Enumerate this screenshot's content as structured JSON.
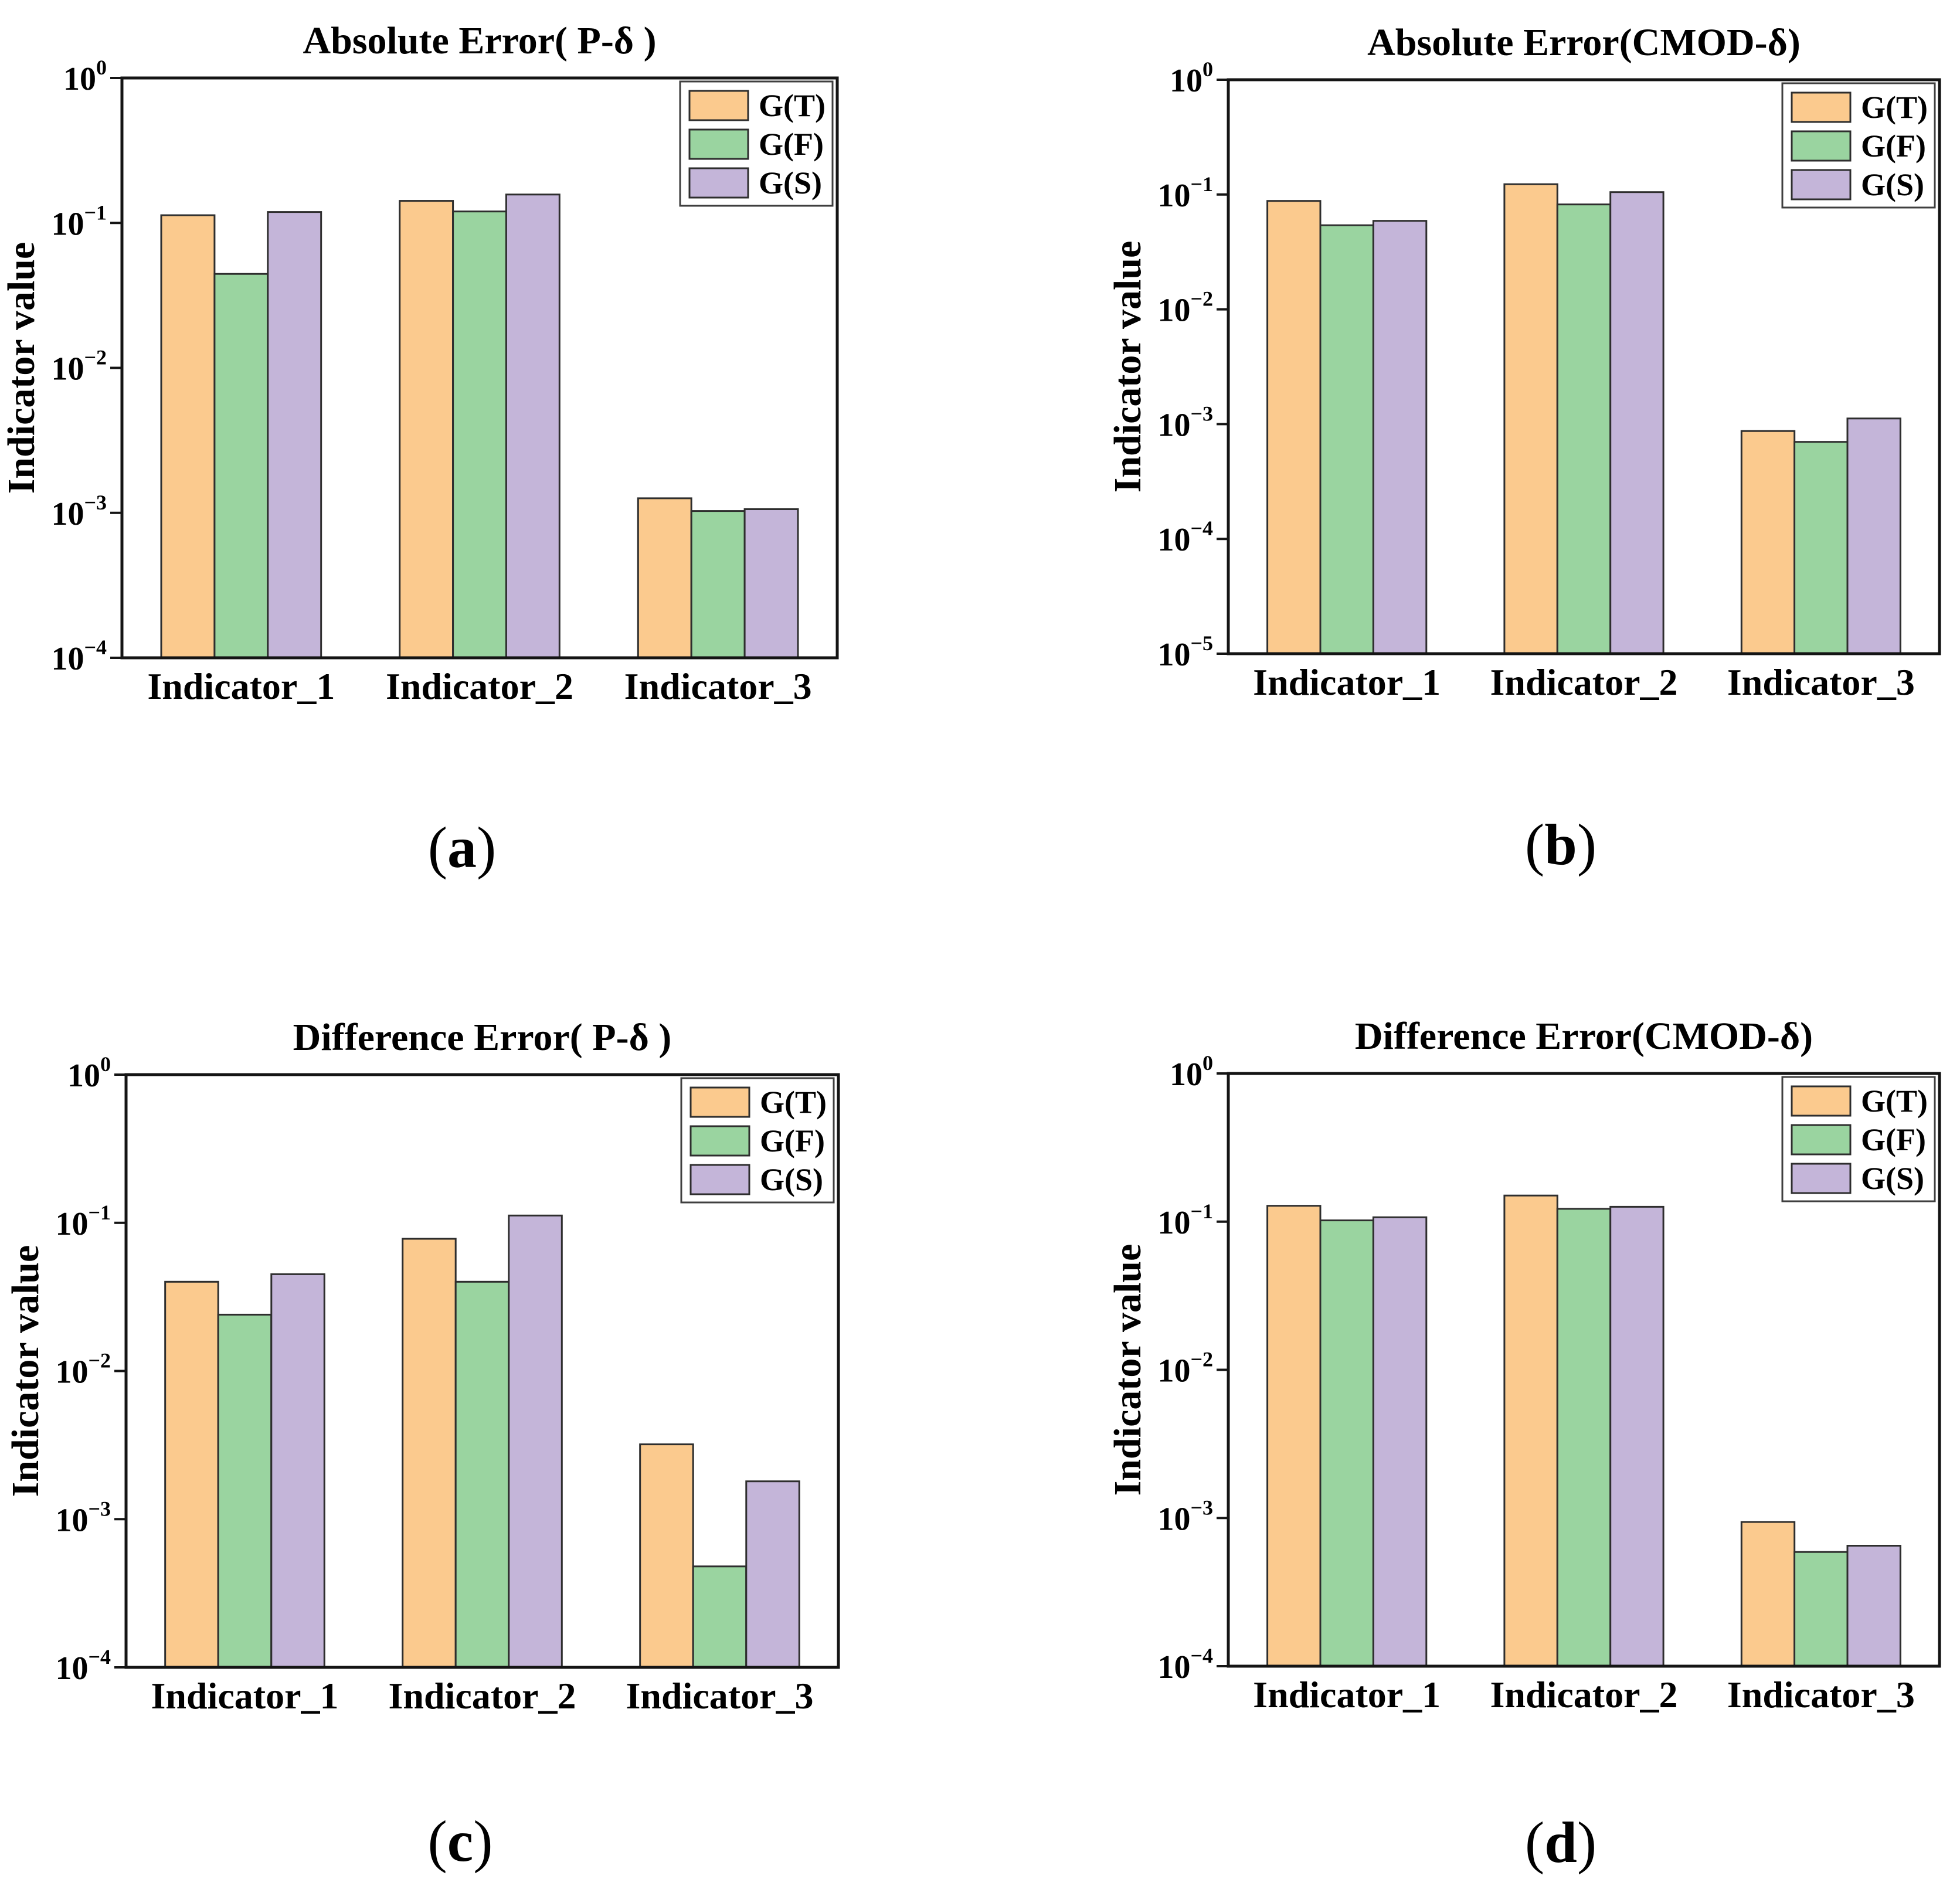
{
  "figure": {
    "background": "#ffffff",
    "axis_color": "#141414",
    "bar_edge_color": "#2e2e2e",
    "legend_border_color": "#3f3f3f"
  },
  "chart_data": [
    {
      "id": "a",
      "type": "bar",
      "caption": {
        "open": "(",
        "letter": "a",
        "close": ")"
      },
      "title": "Absolute Error( P-δ )",
      "ylabel": "Indicator value",
      "yscale": "log",
      "ylim": [
        0.0001,
        1
      ],
      "y_tick_exponents": [
        0,
        -1,
        -2,
        -3,
        -4
      ],
      "grid": false,
      "legend_position": "upper right",
      "categories": [
        "Indicator_1",
        "Indicator_2",
        "Indicator_3"
      ],
      "series": [
        {
          "name": "G(T)",
          "color": "#FBCA8E",
          "values": [
            0.113,
            0.142,
            0.00126
          ]
        },
        {
          "name": "G(F)",
          "color": "#9AD4A0",
          "values": [
            0.0445,
            0.12,
            0.00103
          ]
        },
        {
          "name": "G(S)",
          "color": "#C4B5D9",
          "values": [
            0.119,
            0.157,
            0.00106
          ]
        }
      ]
    },
    {
      "id": "b",
      "type": "bar",
      "caption": {
        "open": "(",
        "letter": "b",
        "close": ")"
      },
      "title": "Absolute Error(CMOD-δ)",
      "ylabel": "Indicator value",
      "yscale": "log",
      "ylim": [
        1e-05,
        1
      ],
      "y_tick_exponents": [
        0,
        -1,
        -2,
        -3,
        -4,
        -5
      ],
      "grid": false,
      "legend_position": "upper right",
      "categories": [
        "Indicator_1",
        "Indicator_2",
        "Indicator_3"
      ],
      "series": [
        {
          "name": "G(T)",
          "color": "#FBCA8E",
          "values": [
            0.088,
            0.123,
            0.00087
          ]
        },
        {
          "name": "G(F)",
          "color": "#9AD4A0",
          "values": [
            0.054,
            0.082,
            0.0007
          ]
        },
        {
          "name": "G(S)",
          "color": "#C4B5D9",
          "values": [
            0.059,
            0.105,
            0.00112
          ]
        }
      ]
    },
    {
      "id": "c",
      "type": "bar",
      "caption": {
        "open": "(",
        "letter": "c",
        "close": ")"
      },
      "title": "Difference Error( P-δ )",
      "ylabel": "Indicator value",
      "yscale": "log",
      "ylim": [
        0.0001,
        1
      ],
      "y_tick_exponents": [
        0,
        -1,
        -2,
        -3,
        -4
      ],
      "grid": false,
      "legend_position": "upper right",
      "categories": [
        "Indicator_1",
        "Indicator_2",
        "Indicator_3"
      ],
      "series": [
        {
          "name": "G(T)",
          "color": "#FBCA8E",
          "values": [
            0.04,
            0.078,
            0.0032
          ]
        },
        {
          "name": "G(F)",
          "color": "#9AD4A0",
          "values": [
            0.024,
            0.04,
            0.00048
          ]
        },
        {
          "name": "G(S)",
          "color": "#C4B5D9",
          "values": [
            0.045,
            0.112,
            0.0018
          ]
        }
      ]
    },
    {
      "id": "d",
      "type": "bar",
      "caption": {
        "open": "(",
        "letter": "d",
        "close": ")"
      },
      "title": "Difference Error(CMOD-δ)",
      "ylabel": "Indicator value",
      "yscale": "log",
      "ylim": [
        0.0001,
        1
      ],
      "y_tick_exponents": [
        0,
        -1,
        -2,
        -3,
        -4
      ],
      "grid": false,
      "legend_position": "upper right",
      "categories": [
        "Indicator_1",
        "Indicator_2",
        "Indicator_3"
      ],
      "series": [
        {
          "name": "G(T)",
          "color": "#FBCA8E",
          "values": [
            0.128,
            0.15,
            0.00094
          ]
        },
        {
          "name": "G(F)",
          "color": "#9AD4A0",
          "values": [
            0.102,
            0.122,
            0.00059
          ]
        },
        {
          "name": "G(S)",
          "color": "#C4B5D9",
          "values": [
            0.107,
            0.126,
            0.00065
          ]
        }
      ]
    }
  ]
}
